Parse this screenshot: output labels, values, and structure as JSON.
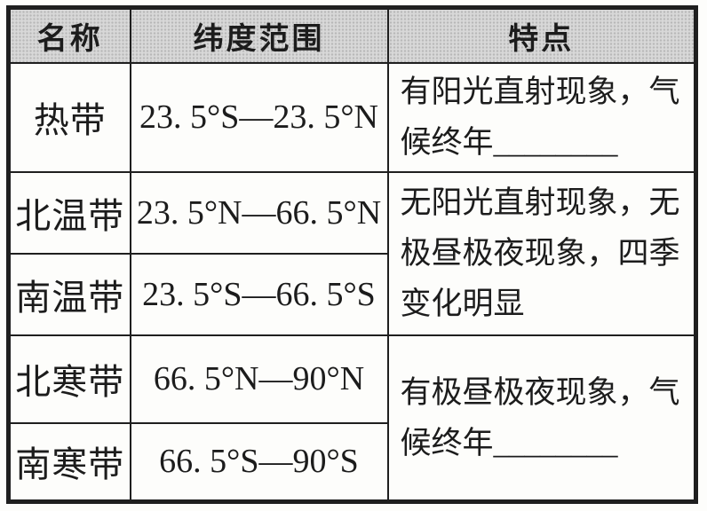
{
  "colors": {
    "paper": "#fdfdfb",
    "header_bg": "#d8d8d8",
    "border": "#1f1f1f",
    "text": "#1c1c1c"
  },
  "table": {
    "columns": [
      {
        "label": "名称"
      },
      {
        "label": "纬度范围"
      },
      {
        "label": "特点"
      }
    ],
    "zones": [
      {
        "name": "热带",
        "range": "23. 5°S—23. 5°N"
      },
      {
        "name": "北温带",
        "range": "23. 5°N—66. 5°N"
      },
      {
        "name": "南温带",
        "range": "23. 5°S—66. 5°S"
      },
      {
        "name": "北寒带",
        "range": "66. 5°N—90°N"
      },
      {
        "name": "南寒带",
        "range": "66. 5°S—90°S"
      }
    ],
    "features": [
      {
        "rows": "热带",
        "text": "有阳光直射现象，气候终年________"
      },
      {
        "rows": "北温带、南温带",
        "text": "无阳光直射现象，无极昼极夜现象，四季变化明显"
      },
      {
        "rows": "北寒带、南寒带",
        "text": "有极昼极夜现象，气候终年________"
      }
    ]
  }
}
